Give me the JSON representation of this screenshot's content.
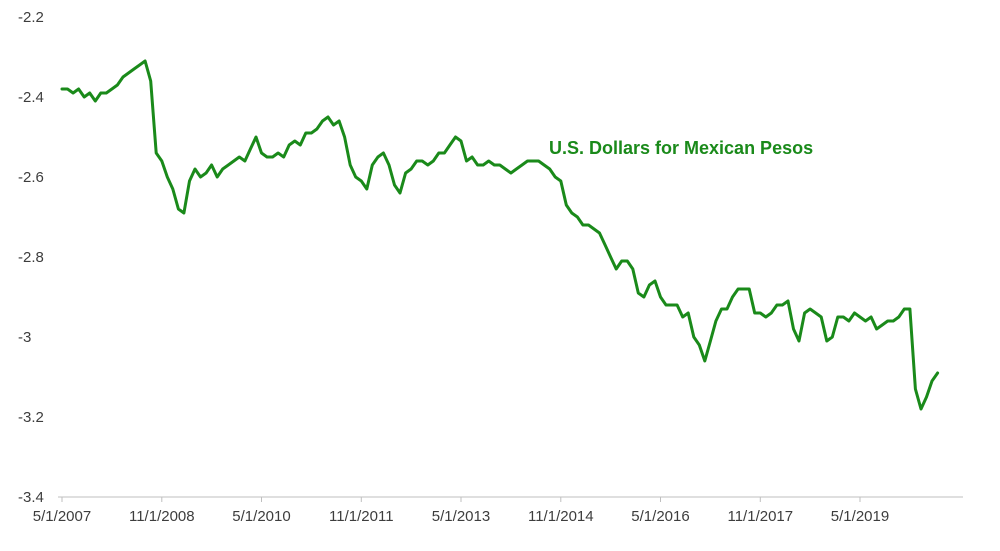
{
  "chart_data": {
    "type": "line",
    "title": "U.S. Dollars for Mexican Pesos",
    "xlabel": "",
    "ylabel": "",
    "ylim": [
      -3.4,
      -2.2
    ],
    "grid": "off",
    "legend": "none",
    "line_color": "#1a8a1a",
    "axis_color": "#bfbfbf",
    "tick_text_color": "#3d3d3d",
    "y_ticks": [
      {
        "label": "-2.2",
        "value": -2.2
      },
      {
        "label": "-2.4",
        "value": -2.4
      },
      {
        "label": "-2.6",
        "value": -2.6
      },
      {
        "label": "-2.8",
        "value": -2.8
      },
      {
        "label": "-3",
        "value": -3.0
      },
      {
        "label": "-3.2",
        "value": -3.2
      },
      {
        "label": "-3.4",
        "value": -3.4
      }
    ],
    "x_ticks": [
      {
        "label": "5/1/2007",
        "month_index": 0
      },
      {
        "label": "11/1/2008",
        "month_index": 18
      },
      {
        "label": "5/1/2010",
        "month_index": 36
      },
      {
        "label": "11/1/2011",
        "month_index": 54
      },
      {
        "label": "5/1/2013",
        "month_index": 72
      },
      {
        "label": "11/1/2014",
        "month_index": 90
      },
      {
        "label": "5/1/2016",
        "month_index": 108
      },
      {
        "label": "11/1/2017",
        "month_index": 126
      },
      {
        "label": "5/1/2019",
        "month_index": 144
      }
    ],
    "series": [
      {
        "name": "U.S. Dollars for Mexican Pesos",
        "start": "5/1/2007",
        "frequency": "monthly",
        "values": [
          -2.38,
          -2.38,
          -2.39,
          -2.38,
          -2.4,
          -2.39,
          -2.41,
          -2.39,
          -2.39,
          -2.38,
          -2.37,
          -2.35,
          -2.34,
          -2.33,
          -2.32,
          -2.31,
          -2.36,
          -2.54,
          -2.56,
          -2.6,
          -2.63,
          -2.68,
          -2.69,
          -2.61,
          -2.58,
          -2.6,
          -2.59,
          -2.57,
          -2.6,
          -2.58,
          -2.57,
          -2.56,
          -2.55,
          -2.56,
          -2.53,
          -2.5,
          -2.54,
          -2.55,
          -2.55,
          -2.54,
          -2.55,
          -2.52,
          -2.51,
          -2.52,
          -2.49,
          -2.49,
          -2.48,
          -2.46,
          -2.45,
          -2.47,
          -2.46,
          -2.5,
          -2.57,
          -2.6,
          -2.61,
          -2.63,
          -2.57,
          -2.55,
          -2.54,
          -2.57,
          -2.62,
          -2.64,
          -2.59,
          -2.58,
          -2.56,
          -2.56,
          -2.57,
          -2.56,
          -2.54,
          -2.54,
          -2.52,
          -2.5,
          -2.51,
          -2.56,
          -2.55,
          -2.57,
          -2.57,
          -2.56,
          -2.57,
          -2.57,
          -2.58,
          -2.59,
          -2.58,
          -2.57,
          -2.56,
          -2.56,
          -2.56,
          -2.57,
          -2.58,
          -2.6,
          -2.61,
          -2.67,
          -2.69,
          -2.7,
          -2.72,
          -2.72,
          -2.73,
          -2.74,
          -2.77,
          -2.8,
          -2.83,
          -2.81,
          -2.81,
          -2.83,
          -2.89,
          -2.9,
          -2.87,
          -2.86,
          -2.9,
          -2.92,
          -2.92,
          -2.92,
          -2.95,
          -2.94,
          -3.0,
          -3.02,
          -3.06,
          -3.01,
          -2.96,
          -2.93,
          -2.93,
          -2.9,
          -2.88,
          -2.88,
          -2.88,
          -2.94,
          -2.94,
          -2.95,
          -2.94,
          -2.92,
          -2.92,
          -2.91,
          -2.98,
          -3.01,
          -2.94,
          -2.93,
          -2.94,
          -2.95,
          -3.01,
          -3.0,
          -2.95,
          -2.95,
          -2.96,
          -2.94,
          -2.95,
          -2.96,
          -2.95,
          -2.98,
          -2.97,
          -2.96,
          -2.96,
          -2.95,
          -2.93,
          -2.93,
          -3.13,
          -3.18,
          -3.15,
          -3.11,
          -3.09
        ]
      }
    ]
  }
}
